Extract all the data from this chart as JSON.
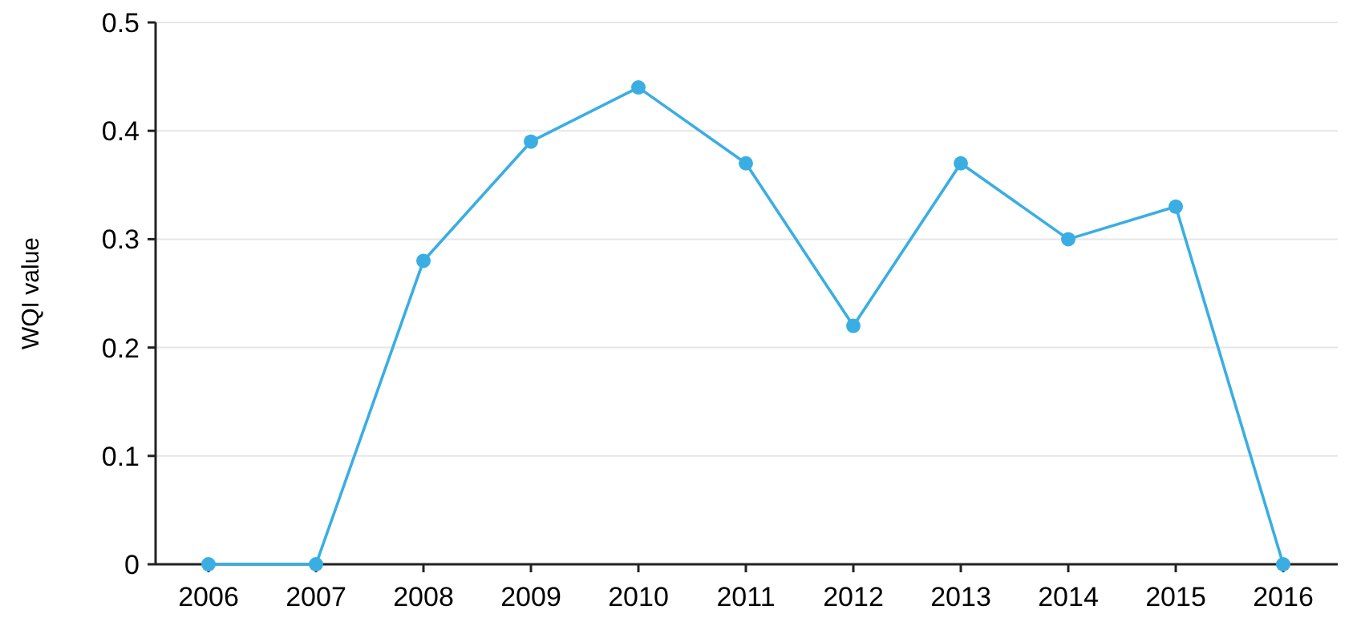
{
  "chart_data": {
    "type": "line",
    "ylabel": "WQI value",
    "categories": [
      "2006",
      "2007",
      "2008",
      "2009",
      "2010",
      "2011",
      "2012",
      "2013",
      "2014",
      "2015",
      "2016"
    ],
    "series": [
      {
        "color": "#3aaee2",
        "values": [
          0,
          0,
          0.28,
          0.39,
          0.44,
          0.37,
          0.22,
          0.37,
          0.3,
          0.33,
          0
        ]
      }
    ],
    "ylim": [
      0,
      0.5
    ],
    "yticks": [
      0,
      0.1,
      0.2,
      0.3,
      0.4,
      0.5
    ],
    "grid": "y",
    "marker": "circle",
    "line_style": "solid"
  }
}
